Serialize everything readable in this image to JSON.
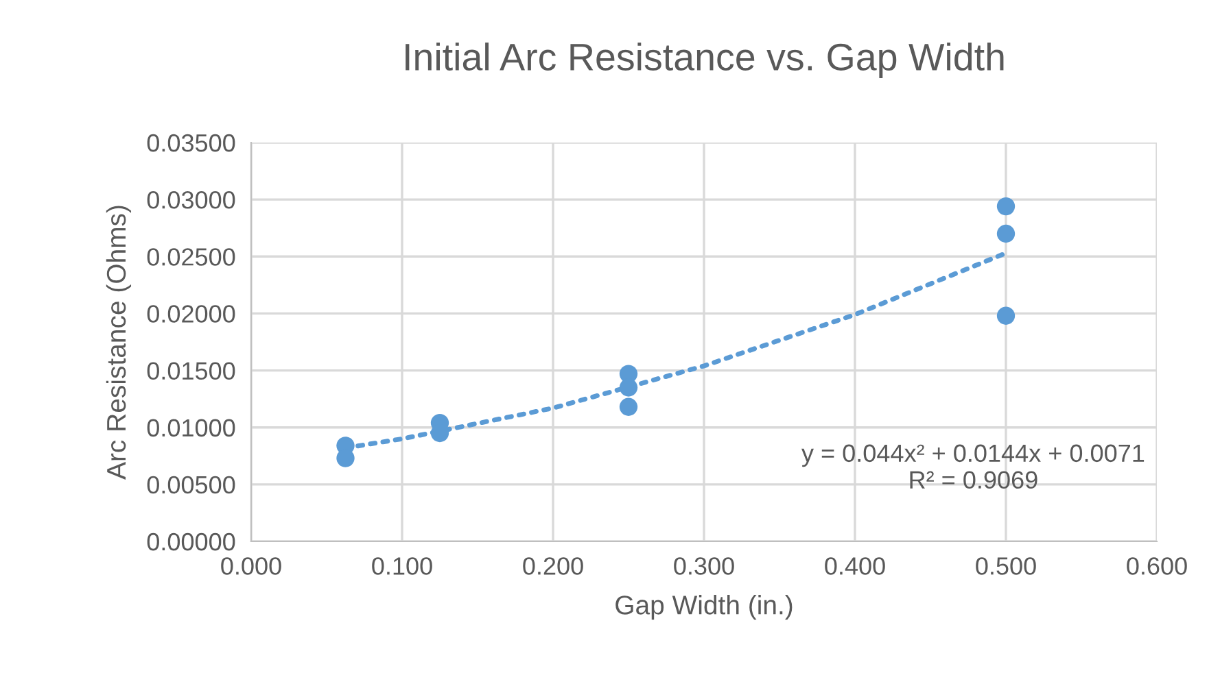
{
  "chart_data": {
    "type": "scatter",
    "title": "Initial Arc Resistance vs. Gap Width",
    "xlabel": "Gap Width (in.)",
    "ylabel": "Arc Resistance (Ohms)",
    "series": [
      {
        "color": "#5b9bd5",
        "marker": "circle",
        "x": [
          0.0625,
          0.0625,
          0.125,
          0.125,
          0.25,
          0.25,
          0.25,
          0.5,
          0.5,
          0.5
        ],
        "values": [
          0.0084,
          0.0073,
          0.0104,
          0.0095,
          0.0147,
          0.0135,
          0.0118,
          0.0294,
          0.027,
          0.0198
        ]
      },
      {
        "type": "line",
        "color": "#5b9bd5",
        "line_style": "dotted",
        "x": [
          0.0625,
          0.1,
          0.2,
          0.3,
          0.4,
          0.5
        ],
        "values": [
          0.0082,
          0.009,
          0.0117,
          0.0154,
          0.0199,
          0.0253
        ]
      }
    ],
    "annotations": [
      "y = 0.044x² + 0.0144x + 0.0071\nR² = 0.9069"
    ],
    "xlim": [
      0,
      0.6
    ],
    "xticks": [
      {
        "value": 0,
        "label": "0.000"
      },
      {
        "value": 0.1,
        "label": "0.100"
      },
      {
        "value": 0.2,
        "label": "0.200"
      },
      {
        "value": 0.3,
        "label": "0.300"
      },
      {
        "value": 0.4,
        "label": "0.400"
      },
      {
        "value": 0.5,
        "label": "0.500"
      },
      {
        "value": 0.6,
        "label": "0.600"
      }
    ],
    "ylim": [
      0,
      0.035
    ],
    "yticks": [
      {
        "value": 0,
        "label": "0.00000"
      },
      {
        "value": 0.005,
        "label": "0.00500"
      },
      {
        "value": 0.01,
        "label": "0.01000"
      },
      {
        "value": 0.015,
        "label": "0.01500"
      },
      {
        "value": 0.02,
        "label": "0.02000"
      },
      {
        "value": 0.025,
        "label": "0.02500"
      },
      {
        "value": 0.03,
        "label": "0.03000"
      },
      {
        "value": 0.035,
        "label": "0.03500"
      }
    ],
    "grid": true
  }
}
